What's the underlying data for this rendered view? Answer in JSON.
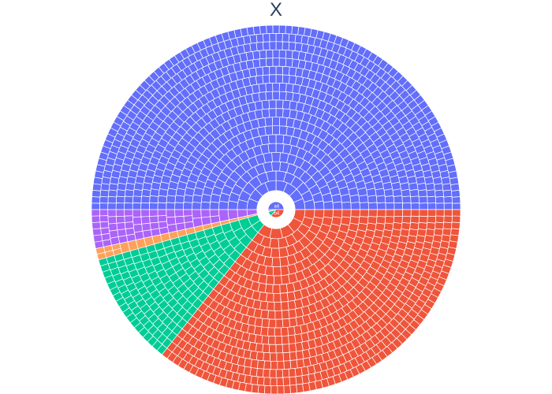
{
  "chart_title": "X",
  "chart_data": {
    "type": "sunburst",
    "title": "X",
    "depth_levels": 20,
    "root_labels": [
      "a4",
      "b4"
    ],
    "sectors": [
      {
        "name": "",
        "color": "#636efa",
        "share": 0.5,
        "start_angle_deg": 0
      },
      {
        "name": "",
        "color": "#ab63fa",
        "share": 0.034
      },
      {
        "name": "",
        "color": "#ffa15a",
        "share": 0.01
      },
      {
        "name": "",
        "color": "#00cc96",
        "share": 0.1
      },
      {
        "name": "",
        "color": "#ef553b",
        "share": 0.356
      }
    ],
    "colors": {
      "blue": "#636efa",
      "purple": "#ab63fa",
      "orange": "#ffa15a",
      "green": "#00cc96",
      "red": "#ef553b"
    }
  }
}
